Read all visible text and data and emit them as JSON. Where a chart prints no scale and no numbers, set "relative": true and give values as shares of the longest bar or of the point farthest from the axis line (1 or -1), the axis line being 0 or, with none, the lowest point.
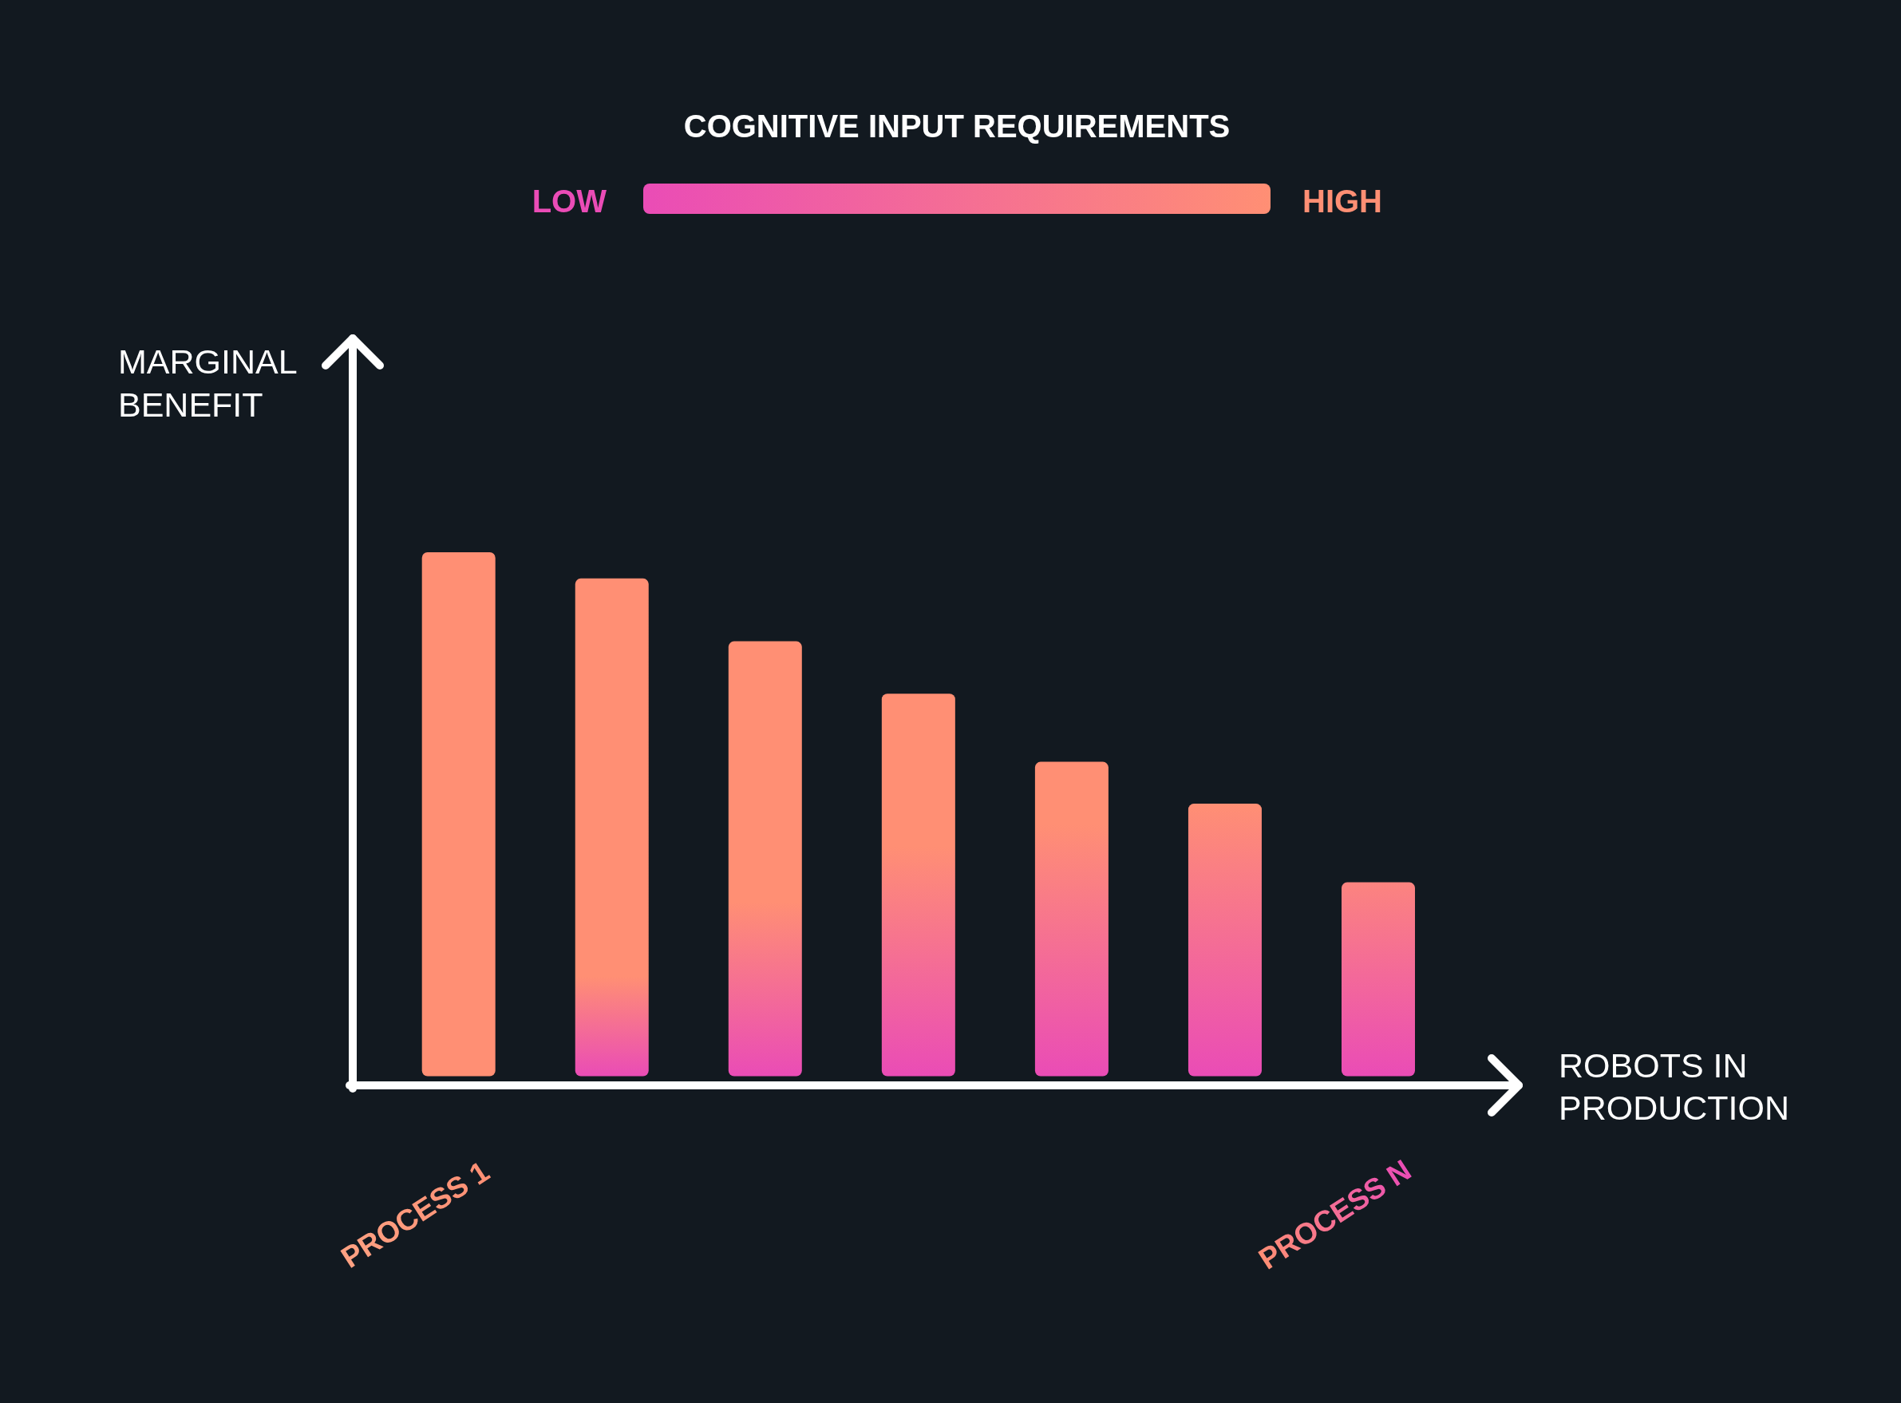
{
  "chart_data": {
    "type": "bar",
    "relative": true,
    "xlabel": "ROBOTS IN PRODUCTION",
    "ylabel": "MARGINAL BENEFIT",
    "categories": [
      "PROCESS 1",
      null,
      null,
      null,
      null,
      null,
      "PROCESS N"
    ],
    "values": [
      1,
      0.95,
      0.83,
      0.73,
      0.6,
      0.52,
      0.37
    ],
    "color": "#ff8f74",
    "clabel": "COGNITIVE INPUT REQUIREMENTS",
    "annotations": [
      "LOW",
      "HIGH"
    ]
  }
}
